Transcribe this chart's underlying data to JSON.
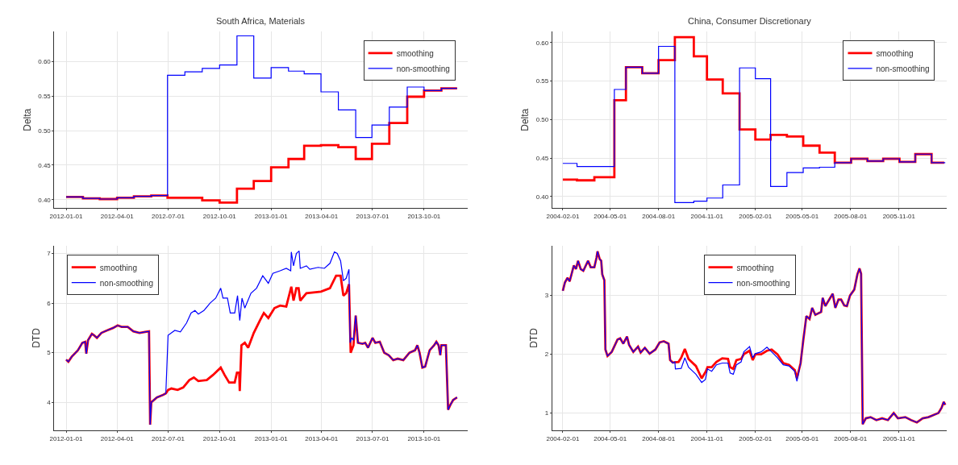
{
  "chart_data": [
    {
      "type": "step",
      "title": "South Africa, Materials",
      "ylabel": "Delta",
      "legend": "top right",
      "grid": true,
      "xlim": [
        "2011-12-11",
        "2013-12-18"
      ],
      "ylim": [
        0.388,
        0.643
      ],
      "xticks": [
        "2012-01-01",
        "2012-04-01",
        "2012-07-01",
        "2012-10-01",
        "2013-01-01",
        "2013-04-01",
        "2013-07-01",
        "2013-10-01"
      ],
      "yticks": [
        {
          "value": 0.4,
          "label": "0.40"
        },
        {
          "value": 0.45,
          "label": "0.45"
        },
        {
          "value": 0.5,
          "label": "0.50"
        },
        {
          "value": 0.55,
          "label": "0.55"
        },
        {
          "value": 0.6,
          "label": "0.60"
        }
      ],
      "series": [
        {
          "name": "smoothing",
          "color": "#ff0000",
          "x": [
            "2012-01-01",
            "2012-01-31",
            "2012-03-01",
            "2012-04-01",
            "2012-05-01",
            "2012-06-01",
            "2012-06-30",
            "2012-08-03",
            "2012-08-31",
            "2012-10-01",
            "2012-11-01",
            "2012-12-01",
            "2013-01-01",
            "2013-02-01",
            "2013-03-01",
            "2013-03-31",
            "2013-05-01",
            "2013-06-01",
            "2013-06-30",
            "2013-07-31",
            "2013-09-01",
            "2013-10-01",
            "2013-11-01",
            "2013-11-29"
          ],
          "values": [
            0.404,
            0.402,
            0.401,
            0.403,
            0.405,
            0.406,
            0.403,
            0.403,
            0.399,
            0.396,
            0.416,
            0.427,
            0.447,
            0.459,
            0.478,
            0.479,
            0.476,
            0.459,
            0.481,
            0.511,
            0.549,
            0.558,
            0.561,
            0.561
          ]
        },
        {
          "name": "non-smoothing",
          "color": "#0000ff",
          "x": [
            "2012-01-01",
            "2012-01-31",
            "2012-03-01",
            "2012-04-01",
            "2012-05-01",
            "2012-06-01",
            "2012-06-30",
            "2012-07-31",
            "2012-08-31",
            "2012-10-01",
            "2012-11-01",
            "2012-12-01",
            "2013-01-01",
            "2013-02-01",
            "2013-03-01",
            "2013-03-31",
            "2013-05-01",
            "2013-06-01",
            "2013-06-30",
            "2013-07-31",
            "2013-09-01",
            "2013-10-01",
            "2013-11-01",
            "2013-11-29"
          ],
          "values": [
            0.404,
            0.402,
            0.401,
            0.403,
            0.405,
            0.406,
            0.58,
            0.585,
            0.59,
            0.595,
            0.637,
            0.576,
            0.591,
            0.586,
            0.582,
            0.556,
            0.53,
            0.49,
            0.508,
            0.534,
            0.563,
            0.558,
            0.561,
            0.561
          ]
        }
      ]
    },
    {
      "type": "step",
      "title": "China, Consumer Discretionary",
      "ylabel": "Delta",
      "legend": "top right",
      "grid": true,
      "xlim": [
        "2004-01-12",
        "2006-01-31"
      ],
      "ylim": [
        0.385,
        0.614
      ],
      "xticks": [
        "2004-02-01",
        "2004-05-01",
        "2004-08-01",
        "2004-11-01",
        "2005-02-01",
        "2005-05-01",
        "2005-08-01",
        "2005-11-01"
      ],
      "yticks": [
        {
          "value": 0.4,
          "label": "0.40"
        },
        {
          "value": 0.45,
          "label": "0.45"
        },
        {
          "value": 0.5,
          "label": "0.50"
        },
        {
          "value": 0.55,
          "label": "0.55"
        },
        {
          "value": 0.6,
          "label": "0.60"
        }
      ],
      "series": [
        {
          "name": "smoothing",
          "color": "#ff0000",
          "x": [
            "2004-02-01",
            "2004-02-28",
            "2004-04-01",
            "2004-05-09",
            "2004-05-31",
            "2004-07-01",
            "2004-08-01",
            "2004-09-01",
            "2004-10-07",
            "2004-11-01",
            "2004-12-01",
            "2005-01-02",
            "2005-02-01",
            "2005-03-02",
            "2005-04-02",
            "2005-05-03",
            "2005-06-03",
            "2005-07-02",
            "2005-08-02",
            "2005-09-02",
            "2005-10-02",
            "2005-11-02",
            "2005-12-02",
            "2006-01-02",
            "2006-01-26"
          ],
          "values": [
            0.422,
            0.421,
            0.425,
            0.525,
            0.568,
            0.56,
            0.577,
            0.607,
            0.582,
            0.552,
            0.534,
            0.487,
            0.474,
            0.48,
            0.478,
            0.466,
            0.457,
            0.444,
            0.449,
            0.446,
            0.449,
            0.445,
            0.455,
            0.444,
            0.444
          ]
        },
        {
          "name": "non-smoothing",
          "color": "#0000ff",
          "x": [
            "2004-02-01",
            "2004-02-28",
            "2004-05-09",
            "2004-05-31",
            "2004-07-01",
            "2004-08-01",
            "2004-09-01",
            "2004-10-07",
            "2004-11-01",
            "2004-12-01",
            "2005-01-02",
            "2005-02-01",
            "2005-03-02",
            "2005-04-02",
            "2005-05-03",
            "2005-06-03",
            "2005-07-02",
            "2005-08-02",
            "2005-09-02",
            "2005-10-02",
            "2005-11-02",
            "2005-12-02",
            "2006-01-02",
            "2006-01-28"
          ],
          "values": [
            0.443,
            0.439,
            0.539,
            0.568,
            0.56,
            0.595,
            0.392,
            0.394,
            0.398,
            0.415,
            0.567,
            0.553,
            0.413,
            0.431,
            0.437,
            0.438,
            0.444,
            0.449,
            0.446,
            0.449,
            0.445,
            0.455,
            0.444,
            0.444
          ]
        }
      ]
    },
    {
      "type": "line",
      "ylabel": "DTD",
      "legend": "top left",
      "grid": true,
      "xlim": [
        "2011-12-11",
        "2013-12-18"
      ],
      "ylim": [
        3.43,
        7.16
      ],
      "xticks": [
        "2012-01-01",
        "2012-04-01",
        "2012-07-01",
        "2012-10-01",
        "2013-01-01",
        "2013-04-01",
        "2013-07-01",
        "2013-10-01"
      ],
      "yticks": [
        4,
        5,
        6,
        7
      ],
      "series": [
        {
          "name": "smoothing",
          "color": "#ff0000",
          "x": [
            "2012-01-01",
            "2012-01-05",
            "2012-01-11",
            "2012-01-22",
            "2012-01-30",
            "2012-02-04",
            "2012-02-06",
            "2012-02-09",
            "2012-02-16",
            "2012-02-20",
            "2012-02-25",
            "2012-03-04",
            "2012-03-14",
            "2012-03-25",
            "2012-04-02",
            "2012-04-09",
            "2012-04-20",
            "2012-04-30",
            "2012-05-11",
            "2012-05-21",
            "2012-05-28",
            "2012-05-30",
            "2012-06-01",
            "2012-06-11",
            "2012-06-22",
            "2012-06-27",
            "2012-07-01",
            "2012-07-07",
            "2012-07-18",
            "2012-07-28",
            "2012-08-08",
            "2012-08-16",
            "2012-08-24",
            "2012-09-08",
            "2012-09-19",
            "2012-10-03",
            "2012-10-10",
            "2012-10-18",
            "2012-10-28",
            "2012-11-01",
            "2012-11-05",
            "2012-11-06",
            "2012-11-09",
            "2012-11-15",
            "2012-11-21",
            "2012-12-01",
            "2012-12-12",
            "2012-12-19",
            "2012-12-27",
            "2013-01-07",
            "2013-01-17",
            "2013-01-28",
            "2013-02-06",
            "2013-02-10",
            "2013-02-15",
            "2013-02-19",
            "2013-02-22",
            "2013-03-05",
            "2013-03-31",
            "2013-04-16",
            "2013-04-27",
            "2013-05-05",
            "2013-05-10",
            "2013-05-15",
            "2013-05-20",
            "2013-05-23",
            "2013-05-28",
            "2013-06-01",
            "2013-06-05",
            "2013-06-13",
            "2013-06-18",
            "2013-06-23",
            "2013-07-01",
            "2013-07-06",
            "2013-07-14",
            "2013-07-22",
            "2013-07-30",
            "2013-08-07",
            "2013-08-15",
            "2013-08-25",
            "2013-09-05",
            "2013-09-15",
            "2013-09-19",
            "2013-09-23",
            "2013-09-28",
            "2013-10-03",
            "2013-10-11",
            "2013-10-19",
            "2013-10-23",
            "2013-10-27",
            "2013-10-30",
            "2013-11-01",
            "2013-11-09",
            "2013-11-13",
            "2013-11-17",
            "2013-11-22",
            "2013-11-29"
          ],
          "values": [
            4.86,
            4.82,
            4.92,
            5.05,
            5.2,
            5.22,
            4.98,
            5.25,
            5.38,
            5.35,
            5.3,
            5.4,
            5.45,
            5.5,
            5.55,
            5.52,
            5.52,
            5.43,
            5.4,
            5.42,
            5.43,
            3.55,
            4.0,
            4.1,
            4.15,
            4.18,
            4.25,
            4.28,
            4.25,
            4.3,
            4.45,
            4.5,
            4.43,
            4.45,
            4.55,
            4.7,
            4.55,
            4.4,
            4.4,
            4.6,
            4.6,
            4.23,
            5.15,
            5.2,
            5.1,
            5.4,
            5.65,
            5.8,
            5.7,
            5.9,
            5.95,
            5.93,
            6.33,
            6.05,
            6.3,
            6.3,
            6.05,
            6.2,
            6.23,
            6.3,
            6.55,
            6.55,
            6.15,
            6.2,
            6.38,
            5.0,
            5.15,
            5.75,
            5.2,
            5.18,
            5.2,
            5.1,
            5.3,
            5.2,
            5.22,
            5.0,
            4.95,
            4.85,
            4.88,
            4.85,
            5.0,
            5.05,
            5.15,
            5.0,
            4.7,
            4.72,
            5.05,
            5.15,
            5.22,
            5.15,
            4.95,
            5.15,
            5.15,
            3.85,
            3.95,
            4.05,
            4.1
          ]
        },
        {
          "name": "non-smoothing",
          "color": "#0000ff",
          "x": [
            "2012-01-01",
            "2012-01-05",
            "2012-01-11",
            "2012-01-22",
            "2012-01-30",
            "2012-02-04",
            "2012-02-06",
            "2012-02-09",
            "2012-02-16",
            "2012-02-20",
            "2012-02-25",
            "2012-03-04",
            "2012-03-14",
            "2012-03-25",
            "2012-04-02",
            "2012-04-09",
            "2012-04-20",
            "2012-04-30",
            "2012-05-11",
            "2012-05-21",
            "2012-05-28",
            "2012-05-30",
            "2012-06-01",
            "2012-06-11",
            "2012-06-22",
            "2012-06-27",
            "2012-07-01",
            "2012-07-13",
            "2012-07-23",
            "2012-08-03",
            "2012-08-11",
            "2012-08-18",
            "2012-08-24",
            "2012-09-03",
            "2012-09-14",
            "2012-09-24",
            "2012-10-03",
            "2012-10-07",
            "2012-10-15",
            "2012-10-20",
            "2012-10-28",
            "2012-11-02",
            "2012-11-06",
            "2012-11-10",
            "2012-11-15",
            "2012-11-26",
            "2012-12-06",
            "2012-12-17",
            "2012-12-27",
            "2013-01-04",
            "2013-01-17",
            "2013-01-28",
            "2013-02-05",
            "2013-02-06",
            "2013-02-10",
            "2013-02-15",
            "2013-02-20",
            "2013-02-22",
            "2013-03-05",
            "2013-03-11",
            "2013-03-26",
            "2013-04-06",
            "2013-04-16",
            "2013-04-24",
            "2013-04-29",
            "2013-05-05",
            "2013-05-10",
            "2013-05-15",
            "2013-05-20",
            "2013-05-22",
            "2013-05-25",
            "2013-05-28",
            "2013-06-01",
            "2013-06-05",
            "2013-06-13",
            "2013-06-18",
            "2013-06-23",
            "2013-07-01",
            "2013-07-06",
            "2013-07-14",
            "2013-07-22",
            "2013-07-30",
            "2013-08-07",
            "2013-08-15",
            "2013-08-25",
            "2013-09-05",
            "2013-09-15",
            "2013-09-19",
            "2013-09-23",
            "2013-09-28",
            "2013-10-03",
            "2013-10-11",
            "2013-10-19",
            "2013-10-23",
            "2013-10-27",
            "2013-10-30",
            "2013-11-01",
            "2013-11-09",
            "2013-11-13",
            "2013-11-17",
            "2013-11-22",
            "2013-11-29"
          ],
          "values": [
            4.86,
            4.82,
            4.92,
            5.05,
            5.2,
            5.22,
            4.98,
            5.25,
            5.38,
            5.35,
            5.3,
            5.4,
            5.45,
            5.5,
            5.55,
            5.52,
            5.52,
            5.43,
            5.4,
            5.42,
            5.43,
            3.55,
            4.0,
            4.1,
            4.15,
            4.18,
            5.35,
            5.45,
            5.42,
            5.6,
            5.8,
            5.85,
            5.78,
            5.85,
            6.0,
            6.1,
            6.3,
            6.1,
            6.1,
            5.8,
            5.8,
            6.15,
            5.65,
            6.1,
            5.9,
            6.2,
            6.3,
            6.55,
            6.4,
            6.6,
            6.65,
            6.7,
            6.65,
            7.03,
            6.75,
            7.0,
            7.05,
            6.7,
            6.75,
            6.68,
            6.72,
            6.7,
            6.8,
            7.03,
            7.0,
            6.85,
            6.45,
            6.5,
            6.68,
            5.2,
            5.3,
            5.25,
            5.75,
            5.2,
            5.18,
            5.2,
            5.1,
            5.3,
            5.2,
            5.22,
            5.0,
            4.95,
            4.85,
            4.88,
            4.85,
            5.0,
            5.05,
            5.15,
            5.0,
            4.7,
            4.72,
            5.05,
            5.15,
            5.22,
            5.15,
            4.95,
            5.15,
            5.15,
            3.85,
            3.95,
            4.05,
            4.1
          ]
        }
      ]
    },
    {
      "type": "line",
      "ylabel": "DTD",
      "legend": "top",
      "grid": true,
      "xlim": [
        "2004-01-12",
        "2006-01-31"
      ],
      "ylim": [
        0.7,
        3.85
      ],
      "xticks": [
        "2004-02-01",
        "2004-05-01",
        "2004-08-01",
        "2004-11-01",
        "2005-02-01",
        "2005-05-01",
        "2005-08-01",
        "2005-11-01"
      ],
      "yticks": [
        1,
        2,
        3
      ],
      "series": [
        {
          "name": "smoothing",
          "color": "#ff0000",
          "x": [
            "2004-02-01",
            "2004-02-05",
            "2004-02-10",
            "2004-02-14",
            "2004-02-19",
            "2004-02-22",
            "2004-02-26",
            "2004-03-01",
            "2004-03-06",
            "2004-03-11",
            "2004-03-20",
            "2004-03-25",
            "2004-04-01",
            "2004-04-05",
            "2004-04-07",
            "2004-04-11",
            "2004-04-14",
            "2004-04-16",
            "2004-04-20",
            "2004-04-22",
            "2004-04-26",
            "2004-05-04",
            "2004-05-15",
            "2004-05-20",
            "2004-05-26",
            "2004-06-02",
            "2004-06-06",
            "2004-06-14",
            "2004-06-23",
            "2004-06-28",
            "2004-07-06",
            "2004-07-15",
            "2004-07-26",
            "2004-08-03",
            "2004-08-11",
            "2004-08-20",
            "2004-08-23",
            "2004-08-28",
            "2004-09-08",
            "2004-09-13",
            "2004-09-20",
            "2004-09-27",
            "2004-10-11",
            "2004-10-22",
            "2004-10-30",
            "2004-11-02",
            "2004-11-10",
            "2004-11-19",
            "2004-11-30",
            "2004-12-11",
            "2004-12-15",
            "2004-12-21",
            "2004-12-27",
            "2005-01-05",
            "2005-01-10",
            "2005-01-21",
            "2005-01-27",
            "2005-02-01",
            "2005-02-12",
            "2005-02-23",
            "2005-03-04",
            "2005-03-15",
            "2005-03-26",
            "2005-04-06",
            "2005-04-17",
            "2005-04-21",
            "2005-04-28",
            "2005-05-03",
            "2005-05-09",
            "2005-05-15",
            "2005-05-20",
            "2005-05-26",
            "2005-06-06",
            "2005-06-09",
            "2005-06-14",
            "2005-06-28",
            "2005-07-03",
            "2005-07-09",
            "2005-07-14",
            "2005-07-20",
            "2005-07-25",
            "2005-07-31",
            "2005-08-08",
            "2005-08-14",
            "2005-08-18",
            "2005-08-21",
            "2005-08-24",
            "2005-08-30",
            "2005-09-08",
            "2005-09-19",
            "2005-09-30",
            "2005-10-11",
            "2005-10-22",
            "2005-10-30",
            "2005-11-13",
            "2005-11-24",
            "2005-12-05",
            "2005-12-16",
            "2005-12-27",
            "2006-01-15",
            "2006-01-21",
            "2006-01-25",
            "2006-01-28"
          ],
          "values": [
            3.08,
            3.22,
            3.3,
            3.24,
            3.41,
            3.51,
            3.45,
            3.59,
            3.45,
            3.42,
            3.59,
            3.48,
            3.48,
            3.64,
            3.75,
            3.62,
            3.59,
            3.36,
            3.26,
            2.08,
            1.97,
            2.04,
            2.25,
            2.27,
            2.18,
            2.3,
            2.16,
            2.04,
            2.13,
            2.03,
            2.11,
            2.01,
            2.08,
            2.2,
            2.22,
            2.18,
            1.9,
            1.86,
            1.87,
            1.94,
            2.09,
            1.92,
            1.8,
            1.59,
            1.71,
            1.78,
            1.78,
            1.87,
            1.93,
            1.92,
            1.78,
            1.75,
            1.9,
            1.92,
            2.0,
            2.06,
            1.9,
            2.0,
            2.0,
            2.06,
            2.08,
            2.0,
            1.85,
            1.82,
            1.73,
            1.59,
            1.85,
            2.23,
            2.65,
            2.6,
            2.79,
            2.67,
            2.72,
            2.96,
            2.82,
            3.03,
            2.79,
            2.93,
            2.93,
            2.83,
            2.82,
            3.0,
            3.1,
            3.36,
            3.46,
            3.37,
            0.81,
            0.91,
            0.93,
            0.88,
            0.91,
            0.88,
            1.0,
            0.91,
            0.93,
            0.88,
            0.84,
            0.91,
            0.93,
            1.0,
            1.09,
            1.19,
            1.14
          ]
        },
        {
          "name": "non-smoothing",
          "color": "#0000ff",
          "x": [
            "2004-02-01",
            "2004-02-05",
            "2004-02-10",
            "2004-02-14",
            "2004-02-19",
            "2004-02-22",
            "2004-02-26",
            "2004-03-01",
            "2004-03-06",
            "2004-03-11",
            "2004-03-20",
            "2004-03-25",
            "2004-04-01",
            "2004-04-05",
            "2004-04-07",
            "2004-04-11",
            "2004-04-14",
            "2004-04-16",
            "2004-04-20",
            "2004-04-22",
            "2004-04-26",
            "2004-05-04",
            "2004-05-15",
            "2004-05-20",
            "2004-05-26",
            "2004-06-02",
            "2004-06-06",
            "2004-06-14",
            "2004-06-23",
            "2004-06-28",
            "2004-07-06",
            "2004-07-15",
            "2004-07-26",
            "2004-08-03",
            "2004-08-11",
            "2004-08-20",
            "2004-08-23",
            "2004-08-28",
            "2004-09-01",
            "2004-09-02",
            "2004-09-13",
            "2004-09-20",
            "2004-09-27",
            "2004-10-11",
            "2004-10-22",
            "2004-10-29",
            "2004-11-02",
            "2004-11-10",
            "2004-11-19",
            "2004-11-30",
            "2004-12-11",
            "2004-12-15",
            "2004-12-21",
            "2004-12-27",
            "2005-01-05",
            "2005-01-10",
            "2005-01-21",
            "2005-01-27",
            "2005-02-01",
            "2005-02-12",
            "2005-02-23",
            "2005-03-04",
            "2005-03-15",
            "2005-03-26",
            "2005-04-06",
            "2005-04-17",
            "2005-04-21",
            "2005-04-28",
            "2005-05-03",
            "2005-05-09",
            "2005-05-15",
            "2005-05-20",
            "2005-05-26",
            "2005-06-06",
            "2005-06-09",
            "2005-06-14",
            "2005-06-28",
            "2005-07-03",
            "2005-07-09",
            "2005-07-14",
            "2005-07-20",
            "2005-07-25",
            "2005-07-31",
            "2005-08-08",
            "2005-08-14",
            "2005-08-18",
            "2005-08-21",
            "2005-08-24",
            "2005-08-30",
            "2005-09-08",
            "2005-09-19",
            "2005-09-30",
            "2005-10-11",
            "2005-10-22",
            "2005-10-30",
            "2005-11-13",
            "2005-11-24",
            "2005-12-05",
            "2005-12-16",
            "2005-12-27",
            "2006-01-15",
            "2006-01-21",
            "2006-01-25",
            "2006-01-28"
          ],
          "values": [
            3.08,
            3.22,
            3.3,
            3.24,
            3.41,
            3.51,
            3.45,
            3.59,
            3.45,
            3.42,
            3.59,
            3.48,
            3.48,
            3.64,
            3.75,
            3.62,
            3.59,
            3.36,
            3.26,
            2.08,
            1.97,
            2.04,
            2.25,
            2.27,
            2.18,
            2.3,
            2.16,
            2.04,
            2.13,
            2.03,
            2.11,
            2.01,
            2.08,
            2.2,
            2.22,
            2.18,
            1.9,
            1.85,
            1.87,
            1.75,
            1.76,
            1.94,
            1.78,
            1.66,
            1.52,
            1.57,
            1.75,
            1.71,
            1.82,
            1.85,
            1.85,
            1.68,
            1.66,
            1.82,
            1.87,
            2.04,
            2.13,
            1.94,
            2.01,
            2.04,
            2.12,
            2.04,
            1.94,
            1.82,
            1.8,
            1.71,
            1.54,
            1.85,
            2.23,
            2.65,
            2.6,
            2.79,
            2.67,
            2.72,
            2.96,
            2.82,
            3.03,
            2.79,
            2.93,
            2.93,
            2.83,
            2.82,
            3.0,
            3.1,
            3.36,
            3.46,
            3.37,
            0.81,
            0.91,
            0.93,
            0.88,
            0.91,
            0.88,
            1.0,
            0.91,
            0.93,
            0.88,
            0.84,
            0.91,
            0.93,
            1.0,
            1.09,
            1.19,
            1.14
          ]
        }
      ]
    }
  ]
}
